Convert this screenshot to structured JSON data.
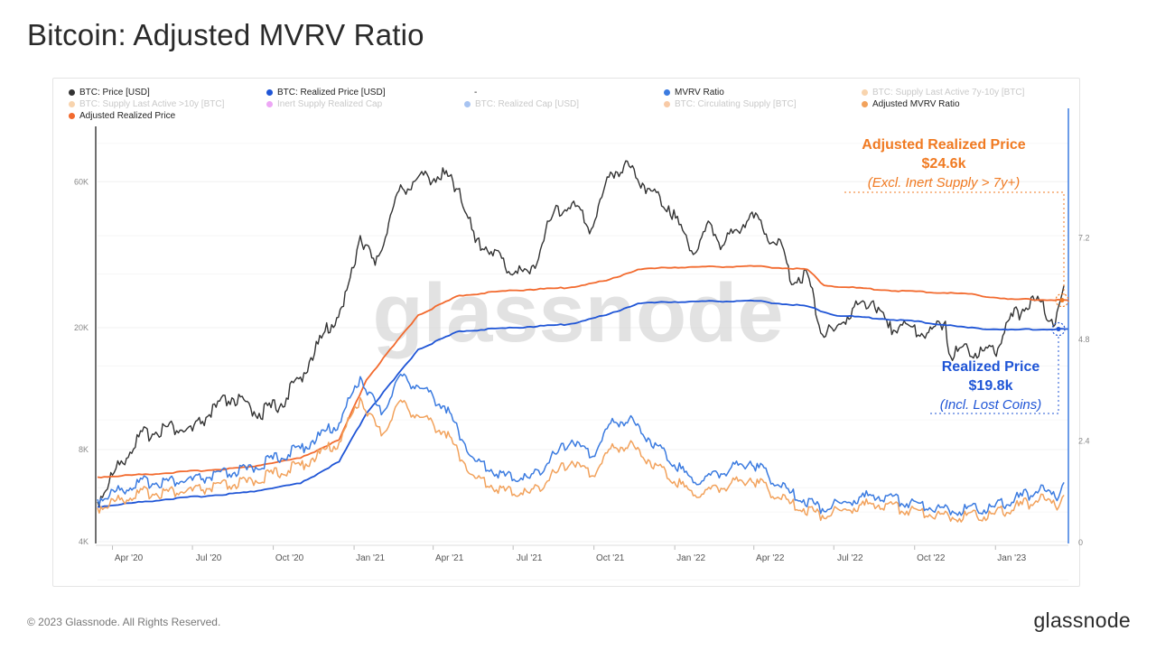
{
  "page": {
    "title": "Bitcoin: Adjusted MVRV Ratio",
    "footer_copyright": "© 2023 Glassnode. All Rights Reserved.",
    "footer_brand": "glassnode",
    "watermark": "glassnode"
  },
  "legend": [
    {
      "label": "BTC: Price [USD]",
      "color": "#333333",
      "active": true
    },
    {
      "label": "BTC: Realized Price [USD]",
      "color": "#1f55d6",
      "active": true
    },
    {
      "label": "-",
      "color": "",
      "active": true
    },
    {
      "label": "MVRV Ratio",
      "color": "#3b7be0",
      "active": true
    },
    {
      "label": "BTC: Supply Last Active 7y-10y [BTC]",
      "color": "#f0a04b",
      "active": false
    },
    {
      "label": "BTC: Supply Last Active >10y [BTC]",
      "color": "#f0a04b",
      "active": false
    },
    {
      "label": "Inert Supply Realized Cap",
      "color": "#d63ce8",
      "active": false
    },
    {
      "label": "BTC: Realized Cap [USD]",
      "color": "#3b7be0",
      "active": false
    },
    {
      "label": "BTC: Circulating Supply [BTC]",
      "color": "#f08a3a",
      "active": false
    },
    {
      "label": "Adjusted MVRV Ratio",
      "color": "#f2a25c",
      "active": true
    },
    {
      "label": "Adjusted Realized Price",
      "color": "#f26a2e",
      "active": true
    }
  ],
  "annotations": {
    "adjusted": {
      "title": "Adjusted Realized Price",
      "value": "$24.6k",
      "note": "(Excl. Inert Supply > 7y+)",
      "color": "#f07a22"
    },
    "realized": {
      "title": "Realized Price",
      "value": "$19.8k",
      "note": "(Incl. Lost Coins)",
      "color": "#1f55d6"
    }
  },
  "chart_data": {
    "type": "line",
    "x_ticks": [
      "Apr '20",
      "Jul '20",
      "Oct '20",
      "Jan '21",
      "Apr '21",
      "Jul '21",
      "Oct '21",
      "Jan '22",
      "Apr '22",
      "Jul '22",
      "Oct '22",
      "Jan '23"
    ],
    "y_left": {
      "scale": "log",
      "ticks": [
        "4K",
        "8K",
        "20K",
        "60K"
      ],
      "tick_values": [
        4000,
        8000,
        20000,
        60000
      ],
      "range": [
        4000,
        85000
      ]
    },
    "y_right": {
      "scale": "linear",
      "ticks": [
        "0",
        "2.4",
        "4.8",
        "7.2"
      ],
      "tick_values": [
        0,
        2.4,
        4.8,
        7.2
      ],
      "range": [
        0,
        9.6
      ]
    },
    "x_range": [
      "2020-03-15",
      "2023-03-25"
    ],
    "series": [
      {
        "name": "BTC: Price [USD]",
        "axis": "left",
        "color": "#333333",
        "points": [
          [
            "2020-03-15",
            5400
          ],
          [
            "2020-04-01",
            6600
          ],
          [
            "2020-05-01",
            8800
          ],
          [
            "2020-06-01",
            9500
          ],
          [
            "2020-07-01",
            9200
          ],
          [
            "2020-07-28",
            11000
          ],
          [
            "2020-08-15",
            11800
          ],
          [
            "2020-09-15",
            10500
          ],
          [
            "2020-10-10",
            11300
          ],
          [
            "2020-11-01",
            13800
          ],
          [
            "2020-11-25",
            18500
          ],
          [
            "2020-12-20",
            23500
          ],
          [
            "2021-01-08",
            40000
          ],
          [
            "2021-01-25",
            32000
          ],
          [
            "2021-02-21",
            56000
          ],
          [
            "2021-03-13",
            61000
          ],
          [
            "2021-04-14",
            63500
          ],
          [
            "2021-05-01",
            57000
          ],
          [
            "2021-05-19",
            38000
          ],
          [
            "2021-06-10",
            36000
          ],
          [
            "2021-06-22",
            31500
          ],
          [
            "2021-07-20",
            30000
          ],
          [
            "2021-08-15",
            46500
          ],
          [
            "2021-09-06",
            51000
          ],
          [
            "2021-09-28",
            42000
          ],
          [
            "2021-10-20",
            64500
          ],
          [
            "2021-11-10",
            67500
          ],
          [
            "2021-12-01",
            57000
          ],
          [
            "2021-12-25",
            50000
          ],
          [
            "2022-01-24",
            35000
          ],
          [
            "2022-02-10",
            44000
          ],
          [
            "2022-02-24",
            37000
          ],
          [
            "2022-03-28",
            47000
          ],
          [
            "2022-04-15",
            40500
          ],
          [
            "2022-05-05",
            36000
          ],
          [
            "2022-05-12",
            28500
          ],
          [
            "2022-06-01",
            30000
          ],
          [
            "2022-06-18",
            19000
          ],
          [
            "2022-07-01",
            19500
          ],
          [
            "2022-07-30",
            24000
          ],
          [
            "2022-08-15",
            24500
          ],
          [
            "2022-09-01",
            20000
          ],
          [
            "2022-09-15",
            20500
          ],
          [
            "2022-10-15",
            19200
          ],
          [
            "2022-11-05",
            21000
          ],
          [
            "2022-11-09",
            16500
          ],
          [
            "2022-12-01",
            17000
          ],
          [
            "2022-12-31",
            16500
          ],
          [
            "2023-01-15",
            21000
          ],
          [
            "2023-02-01",
            23000
          ],
          [
            "2023-02-20",
            24500
          ],
          [
            "2023-03-10",
            20500
          ],
          [
            "2023-03-20",
            27500
          ]
        ]
      },
      {
        "name": "Adjusted Realized Price",
        "axis": "left",
        "color": "#f26a2e",
        "points": [
          [
            "2020-03-15",
            6500
          ],
          [
            "2020-06-01",
            6700
          ],
          [
            "2020-09-01",
            7000
          ],
          [
            "2020-11-01",
            7500
          ],
          [
            "2020-12-15",
            8600
          ],
          [
            "2021-01-15",
            13500
          ],
          [
            "2021-02-15",
            17500
          ],
          [
            "2021-03-15",
            22000
          ],
          [
            "2021-05-01",
            25500
          ],
          [
            "2021-07-01",
            26500
          ],
          [
            "2021-09-01",
            27000
          ],
          [
            "2021-10-15",
            28500
          ],
          [
            "2021-11-20",
            31000
          ],
          [
            "2022-01-01",
            31500
          ],
          [
            "2022-04-01",
            31800
          ],
          [
            "2022-06-01",
            31000
          ],
          [
            "2022-06-20",
            27500
          ],
          [
            "2022-09-01",
            26500
          ],
          [
            "2022-12-01",
            25800
          ],
          [
            "2023-01-15",
            24800
          ],
          [
            "2023-03-25",
            24600
          ]
        ]
      },
      {
        "name": "BTC: Realized Price [USD]",
        "axis": "left",
        "color": "#1f55d6",
        "points": [
          [
            "2020-03-15",
            5200
          ],
          [
            "2020-06-01",
            5500
          ],
          [
            "2020-09-01",
            5800
          ],
          [
            "2020-11-01",
            6200
          ],
          [
            "2020-12-15",
            7300
          ],
          [
            "2021-01-15",
            10500
          ],
          [
            "2021-02-15",
            13500
          ],
          [
            "2021-03-15",
            17000
          ],
          [
            "2021-05-01",
            19500
          ],
          [
            "2021-07-01",
            20000
          ],
          [
            "2021-09-01",
            20500
          ],
          [
            "2021-10-15",
            22000
          ],
          [
            "2021-11-20",
            24000
          ],
          [
            "2022-01-01",
            24300
          ],
          [
            "2022-04-01",
            24500
          ],
          [
            "2022-06-01",
            23500
          ],
          [
            "2022-07-01",
            22000
          ],
          [
            "2022-10-01",
            21000
          ],
          [
            "2022-12-01",
            20000
          ],
          [
            "2023-01-15",
            19700
          ],
          [
            "2023-03-25",
            19800
          ]
        ]
      },
      {
        "name": "MVRV Ratio",
        "axis": "right",
        "color": "#3b7be0",
        "points": [
          [
            "2020-03-15",
            1.0
          ],
          [
            "2020-05-01",
            1.4
          ],
          [
            "2020-07-01",
            1.45
          ],
          [
            "2020-09-01",
            1.7
          ],
          [
            "2020-11-01",
            2.2
          ],
          [
            "2020-12-15",
            2.8
          ],
          [
            "2021-01-08",
            3.9
          ],
          [
            "2021-02-01",
            3.0
          ],
          [
            "2021-02-21",
            3.9
          ],
          [
            "2021-03-13",
            3.7
          ],
          [
            "2021-04-14",
            3.2
          ],
          [
            "2021-05-19",
            1.9
          ],
          [
            "2021-06-22",
            1.55
          ],
          [
            "2021-07-20",
            1.5
          ],
          [
            "2021-09-06",
            2.4
          ],
          [
            "2021-09-28",
            2.0
          ],
          [
            "2021-10-20",
            2.8
          ],
          [
            "2021-11-10",
            2.9
          ],
          [
            "2022-01-24",
            1.4
          ],
          [
            "2022-03-28",
            1.9
          ],
          [
            "2022-05-12",
            1.15
          ],
          [
            "2022-06-18",
            0.78
          ],
          [
            "2022-08-15",
            1.1
          ],
          [
            "2022-11-09",
            0.75
          ],
          [
            "2022-12-31",
            0.82
          ],
          [
            "2023-02-20",
            1.22
          ],
          [
            "2023-03-10",
            1.05
          ],
          [
            "2023-03-20",
            1.4
          ]
        ]
      },
      {
        "name": "Adjusted MVRV Ratio",
        "axis": "right",
        "color": "#f2a25c",
        "points": [
          [
            "2020-03-15",
            0.8
          ],
          [
            "2020-05-01",
            1.15
          ],
          [
            "2020-07-01",
            1.2
          ],
          [
            "2020-09-01",
            1.4
          ],
          [
            "2020-11-01",
            1.8
          ],
          [
            "2020-12-15",
            2.35
          ],
          [
            "2021-01-08",
            3.4
          ],
          [
            "2021-02-01",
            2.5
          ],
          [
            "2021-02-21",
            3.3
          ],
          [
            "2021-03-13",
            3.0
          ],
          [
            "2021-04-14",
            2.6
          ],
          [
            "2021-05-19",
            1.5
          ],
          [
            "2021-06-22",
            1.2
          ],
          [
            "2021-07-20",
            1.15
          ],
          [
            "2021-09-06",
            1.9
          ],
          [
            "2021-09-28",
            1.55
          ],
          [
            "2021-10-20",
            2.2
          ],
          [
            "2021-11-10",
            2.3
          ],
          [
            "2022-01-24",
            1.1
          ],
          [
            "2022-03-28",
            1.5
          ],
          [
            "2022-05-12",
            0.9
          ],
          [
            "2022-06-18",
            0.62
          ],
          [
            "2022-08-15",
            0.9
          ],
          [
            "2022-11-09",
            0.6
          ],
          [
            "2022-12-31",
            0.65
          ],
          [
            "2023-02-20",
            1.0
          ],
          [
            "2023-03-10",
            0.85
          ],
          [
            "2023-03-20",
            1.1
          ]
        ]
      }
    ],
    "grid": true,
    "legend_position": "top"
  }
}
